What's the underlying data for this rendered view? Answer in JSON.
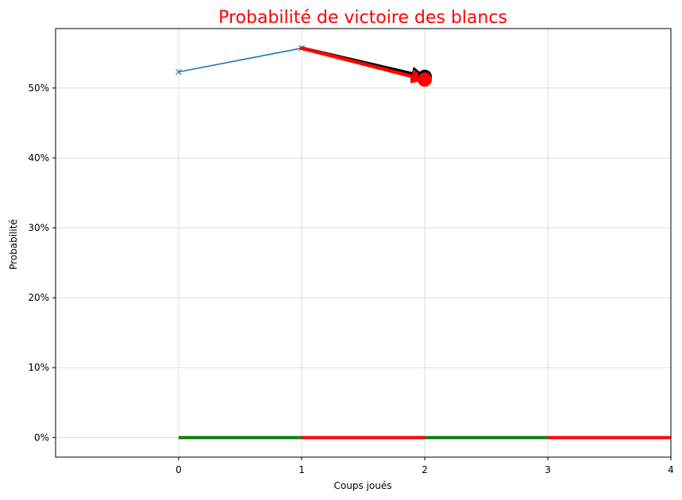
{
  "chart_data": {
    "type": "line",
    "title": "Probabilité de victoire des blancs",
    "title_color": "#ff0000",
    "xlabel": "Coups joués",
    "ylabel": "Probabilité",
    "xlim": [
      -1,
      4
    ],
    "ylim": [
      -0.028,
      0.585
    ],
    "x_ticks": [
      0,
      1,
      2,
      3,
      4
    ],
    "x_tick_labels": [
      "0",
      "1",
      "2",
      "3",
      "4"
    ],
    "y_ticks": [
      0,
      0.1,
      0.2,
      0.3,
      0.4,
      0.5
    ],
    "y_tick_labels": [
      "0%",
      "10%",
      "20%",
      "30%",
      "40%",
      "50%"
    ],
    "grid": true,
    "series": [
      {
        "x": [
          0,
          1
        ],
        "y": [
          0.523,
          0.557
        ],
        "color": "#1f77b4",
        "marker": "x"
      }
    ],
    "arrows": [
      {
        "from": [
          1,
          0.557
        ],
        "to": [
          2,
          0.516
        ],
        "color": "#000000"
      },
      {
        "from": [
          1,
          0.557
        ],
        "to": [
          2,
          0.512
        ],
        "color": "#ff0000"
      }
    ],
    "end_markers": [
      {
        "x": 2,
        "y": 0.516,
        "color": "#000000"
      },
      {
        "x": 2,
        "y": 0.512,
        "color": "#ff0000"
      }
    ],
    "move_bar": [
      {
        "x0": 0,
        "x1": 1,
        "color": "#008000"
      },
      {
        "x0": 1,
        "x1": 2,
        "color": "#ff0000"
      },
      {
        "x0": 2,
        "x1": 3,
        "color": "#008000"
      },
      {
        "x0": 3,
        "x1": 4,
        "color": "#ff0000"
      }
    ]
  }
}
